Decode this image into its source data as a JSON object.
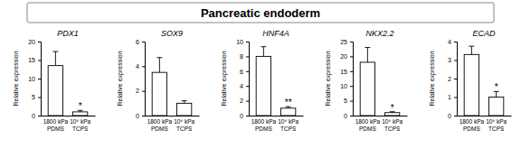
{
  "header": "Pancreatic endoderm",
  "chart_data": [
    {
      "type": "bar",
      "title": "PDX1",
      "y_label": "Relative expression",
      "categories": [
        "1800 kPa\nPDMS",
        "10⁶ kPa\nTCPS"
      ],
      "values": [
        13.5,
        1.0
      ],
      "errors": [
        3.8,
        0.4
      ],
      "annotations": [
        null,
        "*"
      ],
      "color": "#ffffff",
      "ylim": [
        0,
        20
      ],
      "yticks": [
        0,
        5,
        10,
        15,
        20
      ]
    },
    {
      "type": "bar",
      "title": "SOX9",
      "y_label": "Relative expression",
      "categories": [
        "1800 kPa\nPDMS",
        "10⁶ kPa\nTCPS"
      ],
      "values": [
        3.5,
        1.0
      ],
      "errors": [
        1.2,
        0.2
      ],
      "color": "#ffffff",
      "ylim": [
        0,
        6
      ],
      "yticks": [
        0,
        2,
        4,
        6
      ]
    },
    {
      "type": "bar",
      "title": "HNF4A",
      "y_label": "Relative expression",
      "categories": [
        "1800 kPa\nPDMS",
        "10⁶ kPa\nTCPS"
      ],
      "values": [
        8.0,
        1.0
      ],
      "errors": [
        1.3,
        0.2
      ],
      "annotations": [
        null,
        "**"
      ],
      "color": "#ffffff",
      "ylim": [
        0,
        10
      ],
      "yticks": [
        0,
        2,
        4,
        6,
        8,
        10
      ]
    },
    {
      "type": "bar",
      "title": "NKX2.2",
      "y_label": "Relative expression",
      "categories": [
        "1800 kPa\nPDMS",
        "10⁶ kPa\nTCPS"
      ],
      "values": [
        18.0,
        1.0
      ],
      "errors": [
        5.0,
        0.3
      ],
      "annotations": [
        null,
        "*"
      ],
      "color": "#ffffff",
      "ylim": [
        0,
        25
      ],
      "yticks": [
        0,
        5,
        10,
        15,
        20,
        25
      ]
    },
    {
      "type": "bar",
      "title": "ECAD",
      "y_label": "Relative expression",
      "categories": [
        "1800 kPa\nPDMS",
        "10⁶ kPa\nTCPS"
      ],
      "values": [
        3.3,
        1.0
      ],
      "errors": [
        0.45,
        0.3
      ],
      "annotations": [
        null,
        "*"
      ],
      "color": "#ffffff",
      "ylim": [
        0,
        4
      ],
      "yticks": [
        0,
        1,
        2,
        3,
        4
      ]
    }
  ]
}
